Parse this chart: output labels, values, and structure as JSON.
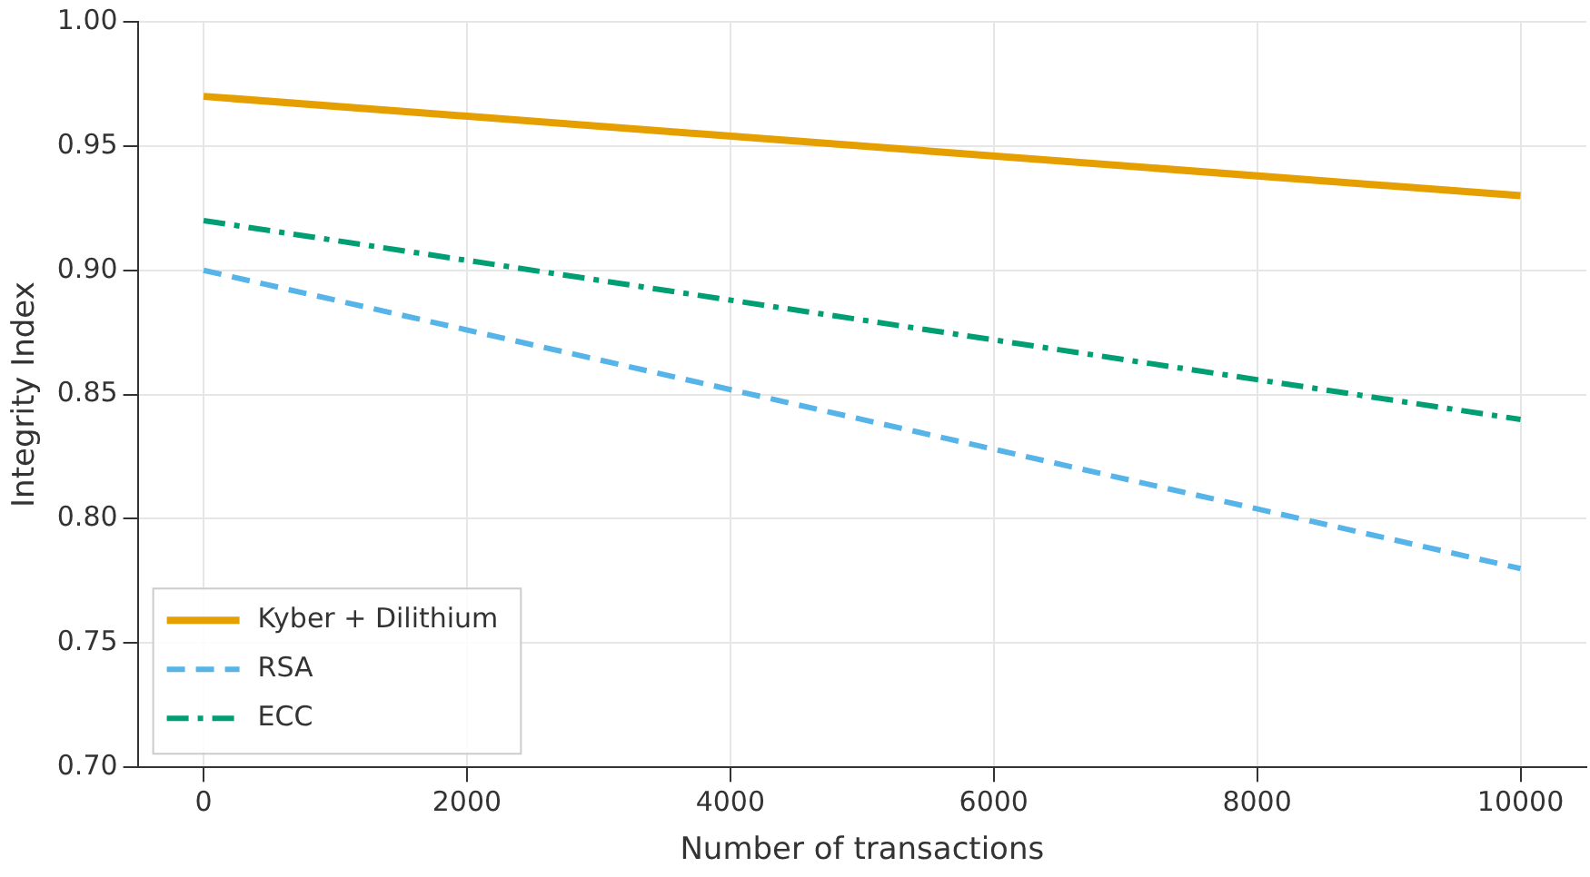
{
  "chart_data": {
    "type": "line",
    "xlabel": "Number of transactions",
    "ylabel": "Integrity Index",
    "x": [
      0,
      10000
    ],
    "series": [
      {
        "name": "Kyber + Dilithium",
        "color": "#e69f00",
        "values": [
          0.97,
          0.93
        ],
        "line_style": "solid"
      },
      {
        "name": "RSA",
        "color": "#56b4e9",
        "values": [
          0.9,
          0.78
        ],
        "line_style": "dashed"
      },
      {
        "name": "ECC",
        "color": "#009e73",
        "values": [
          0.92,
          0.84
        ],
        "line_style": "dashdot"
      }
    ],
    "xlim": [
      -500,
      10500
    ],
    "xticks": [
      0,
      2000,
      4000,
      6000,
      8000,
      10000
    ],
    "ylim": [
      0.7,
      1.0
    ],
    "yticks": [
      {
        "value": 0.7,
        "label": "0.70"
      },
      {
        "value": 0.75,
        "label": "0.75"
      },
      {
        "value": 0.8,
        "label": "0.80"
      },
      {
        "value": 0.85,
        "label": "0.85"
      },
      {
        "value": 0.9,
        "label": "0.90"
      },
      {
        "value": 0.95,
        "label": "0.95"
      },
      {
        "value": 1.0,
        "label": "1.00"
      }
    ],
    "grid": true,
    "legend": "bottom left",
    "marker": "none"
  }
}
